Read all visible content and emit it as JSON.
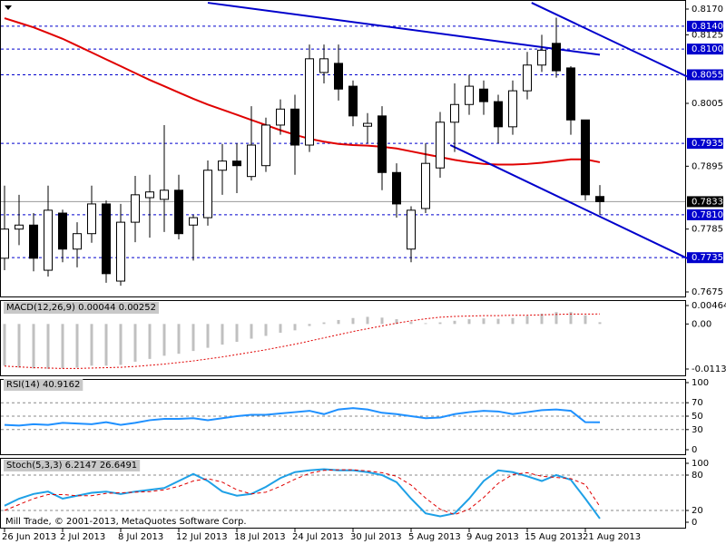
{
  "chart_data": [
    {
      "type": "candlestick",
      "categories": [
        "26 Jun 2013",
        null,
        null,
        null,
        "2 Jul 2013",
        null,
        null,
        null,
        "8 Jul 2013",
        null,
        null,
        null,
        "12 Jul 2013",
        null,
        null,
        null,
        "18 Jul 2013",
        null,
        null,
        null,
        "24 Jul 2013",
        null,
        null,
        null,
        "30 Jul 2013",
        null,
        null,
        null,
        "5 Aug 2013",
        null,
        null,
        null,
        "9 Aug 2013",
        null,
        null,
        null,
        "15 Aug 2013",
        null,
        null,
        null,
        "21 Aug 2013",
        null
      ],
      "open": [
        0.7734,
        0.7785,
        0.7792,
        0.7713,
        0.7813,
        0.775,
        0.7777,
        0.7829,
        0.7694,
        0.7797,
        0.784,
        0.7837,
        0.7853,
        0.7792,
        0.7805,
        0.7888,
        0.7904,
        0.7877,
        0.7896,
        0.7967,
        0.7995,
        0.7932,
        0.8059,
        0.8075,
        0.8035,
        0.7965,
        0.7983,
        0.7884,
        0.775,
        0.7821,
        0.7892,
        0.7972,
        0.8003,
        0.803,
        0.8008,
        0.7964,
        0.8027,
        0.8072,
        0.811,
        0.8067,
        0.7976,
        0.7842
      ],
      "high": [
        0.7861,
        0.7845,
        0.7813,
        0.7861,
        0.7819,
        0.7797,
        0.7861,
        0.7835,
        0.7829,
        0.7878,
        0.788,
        0.7967,
        0.788,
        0.781,
        0.7905,
        0.7934,
        0.7935,
        0.8,
        0.798,
        0.8012,
        0.802,
        0.8108,
        0.8108,
        0.8108,
        0.8045,
        0.7988,
        0.8,
        0.79,
        0.7825,
        0.7935,
        0.799,
        0.804,
        0.8055,
        0.8045,
        0.802,
        0.8045,
        0.8095,
        0.8125,
        0.8155,
        0.807,
        0.7976,
        0.7862
      ],
      "low": [
        0.7713,
        0.7757,
        0.7711,
        0.7702,
        0.7727,
        0.7718,
        0.7761,
        0.7691,
        0.7686,
        0.7762,
        0.777,
        0.778,
        0.7767,
        0.773,
        0.7791,
        0.7845,
        0.7848,
        0.787,
        0.7885,
        0.795,
        0.788,
        0.792,
        0.804,
        0.801,
        0.7965,
        0.7935,
        0.7853,
        0.7805,
        0.7727,
        0.7813,
        0.7875,
        0.792,
        0.7985,
        0.7985,
        0.7935,
        0.795,
        0.8012,
        0.806,
        0.805,
        0.795,
        0.7835,
        0.781
      ],
      "close": [
        0.7785,
        0.7792,
        0.7734,
        0.7818,
        0.775,
        0.7777,
        0.7829,
        0.7707,
        0.7797,
        0.7845,
        0.785,
        0.7853,
        0.7777,
        0.7805,
        0.7888,
        0.7904,
        0.7896,
        0.7932,
        0.7967,
        0.7995,
        0.7932,
        0.8083,
        0.8083,
        0.803,
        0.7983,
        0.797,
        0.7884,
        0.7829,
        0.7818,
        0.79,
        0.7972,
        0.8003,
        0.8035,
        0.8008,
        0.7964,
        0.8027,
        0.8072,
        0.8098,
        0.8062,
        0.7976,
        0.7845,
        0.7833
      ],
      "overlay": {
        "color": "#e00000",
        "values": [
          0.8154,
          0.8146,
          0.8138,
          0.8128,
          0.8118,
          0.8106,
          0.8094,
          0.8082,
          0.807,
          0.8058,
          0.8046,
          0.8035,
          0.8024,
          0.8013,
          0.8003,
          0.7994,
          0.7985,
          0.7976,
          0.7967,
          0.7958,
          0.795,
          0.7943,
          0.7938,
          0.7934,
          0.7932,
          0.7931,
          0.7929,
          0.7926,
          0.7921,
          0.7916,
          0.7911,
          0.7906,
          0.7902,
          0.7899,
          0.7898,
          0.7898,
          0.7899,
          0.7901,
          0.7904,
          0.7907,
          0.7907,
          0.7902
        ]
      },
      "ylim": [
        0.7675,
        0.817
      ],
      "yticks": [
        {
          "value": 0.817,
          "label": "0.8170"
        },
        {
          "value": 0.8125,
          "label": "0.8125"
        },
        {
          "value": 0.8005,
          "label": "0.8005"
        },
        {
          "value": 0.7895,
          "label": "0.7895"
        },
        {
          "value": 0.7785,
          "label": "0.7785"
        },
        {
          "value": 0.7675,
          "label": "0.7675"
        }
      ],
      "levels": [
        {
          "value": 0.814,
          "label": "0.8140"
        },
        {
          "value": 0.81,
          "label": "0.8100"
        },
        {
          "value": 0.8055,
          "label": "0.8055"
        },
        {
          "value": 0.7935,
          "label": "0.7935"
        },
        {
          "value": 0.781,
          "label": "0.7810"
        },
        {
          "value": 0.7735,
          "label": "0.7735"
        }
      ],
      "level_color": "#0000cd",
      "last_price": {
        "value": 0.7833,
        "label": "0.7833"
      },
      "trendlines": [
        {
          "color": "#0000cc",
          "start": [
            14,
            0.8181
          ],
          "end": [
            41,
            0.809
          ]
        },
        {
          "color": "#0000cc",
          "start": [
            36.3,
            0.8181
          ],
          "end": [
            47,
            0.8052
          ]
        },
        {
          "color": "#0000cc",
          "start": [
            30.7,
            0.7932
          ],
          "end": [
            47,
            0.7734
          ]
        }
      ]
    },
    {
      "type": "macd",
      "title": "MACD(12,26,9) 0.00044 0.00252",
      "series": [
        {
          "kind": "bar",
          "color": "#c0c0c0",
          "values": [
            -0.0105,
            -0.011,
            -0.0112,
            -0.0113,
            -0.0112,
            -0.011,
            -0.0105,
            -0.0105,
            -0.0103,
            -0.0095,
            -0.0088,
            -0.008,
            -0.0075,
            -0.0068,
            -0.006,
            -0.0052,
            -0.0045,
            -0.0037,
            -0.003,
            -0.0022,
            -0.0016,
            -0.0005,
            0.0004,
            0.001,
            0.0015,
            0.0018,
            0.0016,
            0.0012,
            0.0005,
            0.0002,
            0.0004,
            0.0008,
            0.0012,
            0.0014,
            0.0013,
            0.0015,
            0.002,
            0.0026,
            0.003,
            0.003,
            0.0022,
            0.00044
          ]
        },
        {
          "kind": "line",
          "color": "#e00000",
          "values": [
            -0.0106,
            -0.0108,
            -0.011,
            -0.0111,
            -0.0112,
            -0.0112,
            -0.0111,
            -0.011,
            -0.0109,
            -0.0107,
            -0.0104,
            -0.0101,
            -0.0097,
            -0.0093,
            -0.0088,
            -0.0083,
            -0.0077,
            -0.0071,
            -0.0065,
            -0.0058,
            -0.0051,
            -0.0043,
            -0.0035,
            -0.0027,
            -0.0019,
            -0.0012,
            -0.0005,
            0.0002,
            0.0008,
            0.0013,
            0.0017,
            0.0019,
            0.002,
            0.0021,
            0.0021,
            0.0022,
            0.0022,
            0.0023,
            0.0024,
            0.0025,
            0.0025,
            0.00252
          ]
        }
      ],
      "ylim": [
        -0.01134,
        0.00464
      ],
      "yticks": [
        0.00464,
        {
          "value": 0,
          "label": "0.00"
        },
        -0.01134
      ]
    },
    {
      "type": "line",
      "title": "RSI(14) 40.9162",
      "series": [
        {
          "color": "#1e90ff",
          "values": [
            37,
            36,
            38,
            37,
            40,
            39,
            38,
            41,
            37,
            40,
            44,
            46,
            46,
            47,
            44,
            47,
            50,
            52,
            52,
            54,
            56,
            58,
            53,
            60,
            62,
            60,
            55,
            53,
            50,
            47,
            48,
            53,
            56,
            58,
            57,
            53,
            56,
            59,
            60,
            58,
            41,
            40.9162
          ]
        }
      ],
      "ylim": [
        0,
        100
      ],
      "yticks": [
        100,
        70,
        50,
        30,
        0
      ],
      "levels": [
        70,
        50,
        30
      ]
    },
    {
      "type": "line",
      "title": "Stoch(5,3,3) 6.2147 26.6491",
      "series": [
        {
          "color": "#1ea0e6",
          "values": [
            28,
            40,
            48,
            52,
            40,
            45,
            50,
            52,
            48,
            52,
            55,
            58,
            70,
            82,
            70,
            52,
            45,
            48,
            60,
            75,
            85,
            88,
            90,
            88,
            88,
            85,
            80,
            68,
            40,
            15,
            10,
            15,
            40,
            70,
            88,
            85,
            78,
            70,
            80,
            72,
            40,
            6.2147
          ]
        },
        {
          "color": "#e00000",
          "dashed": true,
          "values": [
            20,
            30,
            40,
            47,
            47,
            45,
            45,
            49,
            50,
            51,
            52,
            55,
            61,
            70,
            74,
            68,
            55,
            48,
            51,
            61,
            73,
            83,
            88,
            89,
            89,
            87,
            84,
            78,
            63,
            41,
            22,
            13,
            22,
            42,
            66,
            81,
            84,
            78,
            76,
            74,
            64,
            26.6491
          ]
        }
      ],
      "ylim": [
        0,
        100
      ],
      "yticks": [
        100,
        80,
        20,
        0
      ],
      "levels": [
        80,
        20
      ]
    }
  ],
  "footer": "Mill Trade, © 2001-2013, MetaQuotes Software Corp."
}
